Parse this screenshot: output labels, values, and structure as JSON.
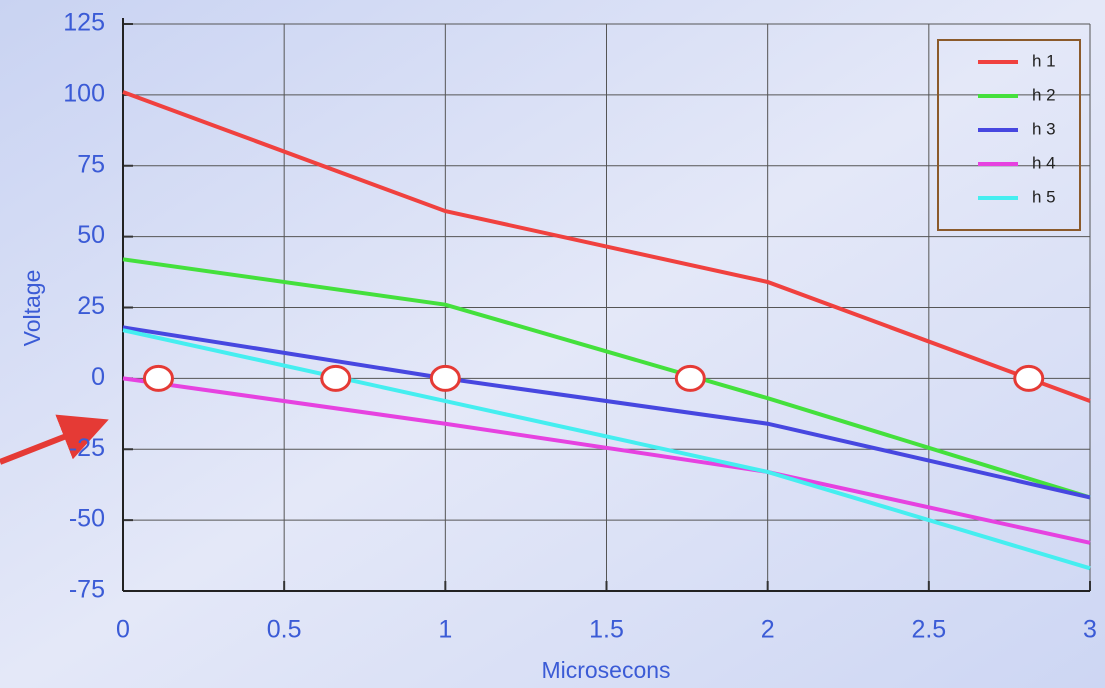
{
  "chart_data": {
    "type": "line",
    "x_label": "Microsecons",
    "y_label": "Voltage",
    "xlim": [
      0,
      3
    ],
    "xticks": [
      0,
      0.5,
      1,
      1.5,
      2,
      2.5,
      3
    ],
    "ylim": [
      -75,
      125
    ],
    "yticks": [
      -75,
      -50,
      -25,
      0,
      25,
      50,
      75,
      100,
      125
    ],
    "grid": true,
    "legend": "top-right",
    "x": [
      0,
      1,
      2,
      3
    ],
    "series": [
      {
        "name": "h 1",
        "color": "#f0413f",
        "values": [
          101,
          59,
          34,
          -8
        ]
      },
      {
        "name": "h 2",
        "color": "#44e03c",
        "values": [
          42,
          26,
          -7,
          -42
        ]
      },
      {
        "name": "h 3",
        "color": "#4747e0",
        "values": [
          18,
          0,
          -16,
          -42
        ]
      },
      {
        "name": "h 4",
        "color": "#e642e0",
        "values": [
          0,
          -16,
          -33,
          -58
        ]
      },
      {
        "name": "h 5",
        "color": "#45eef0",
        "values": [
          17,
          -8,
          -33,
          -67
        ]
      }
    ],
    "markers": {
      "color": "#e53a35",
      "x": [
        0.11,
        0.66,
        1.0,
        1.76,
        2.81
      ],
      "y": [
        0,
        0,
        0,
        0,
        0
      ]
    }
  }
}
